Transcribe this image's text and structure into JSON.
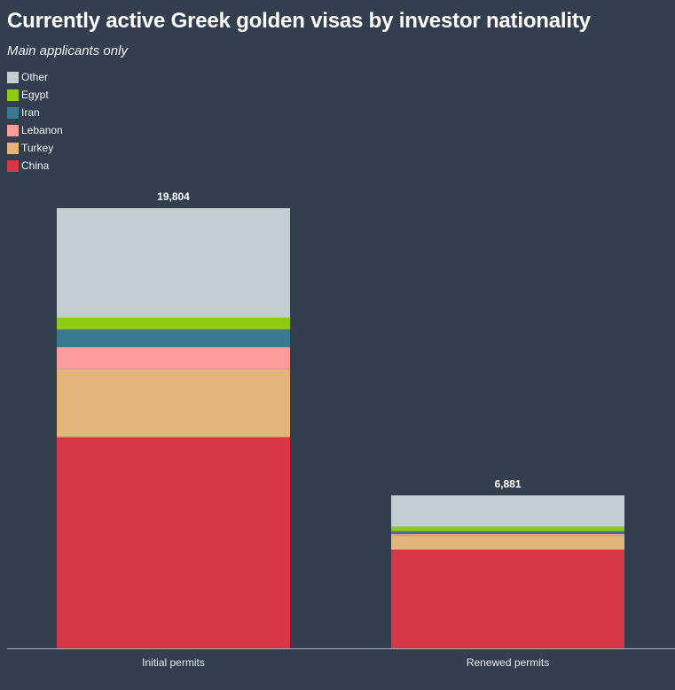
{
  "header": {
    "title": "Currently active Greek golden visas by investor nationality",
    "subtitle": "Main applicants only"
  },
  "chart_data": {
    "type": "bar",
    "stacked": true,
    "title": "Currently active Greek golden visas by investor nationality",
    "subtitle": "Main applicants only",
    "categories": [
      "Initial permits",
      "Renewed permits"
    ],
    "totals": [
      "19,804",
      "6,881"
    ],
    "total_values": [
      19804,
      6881
    ],
    "legend_position": "top-left",
    "grid": false,
    "ylim": [
      0,
      19804
    ],
    "series": [
      {
        "name": "China",
        "color": "#d63646",
        "values": [
          9500,
          4440
        ]
      },
      {
        "name": "Turkey",
        "color": "#e2b47a",
        "values": [
          3060,
          650
        ]
      },
      {
        "name": "Lebanon",
        "color": "#fc9c9c",
        "values": [
          990,
          50
        ]
      },
      {
        "name": "Iran",
        "color": "#3a7891",
        "values": [
          800,
          130
        ]
      },
      {
        "name": "Egypt",
        "color": "#8fcb14",
        "values": [
          520,
          210
        ]
      },
      {
        "name": "Other",
        "color": "#c3ced2",
        "values": [
          4934,
          1401
        ]
      }
    ]
  }
}
